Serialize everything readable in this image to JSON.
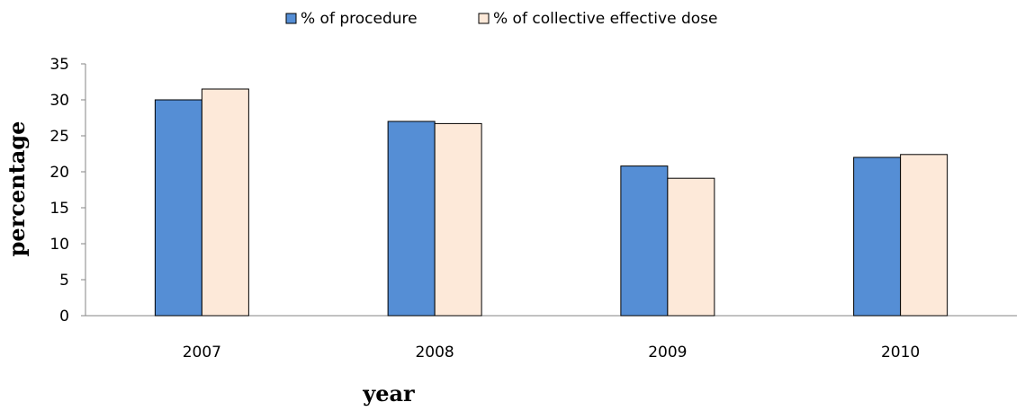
{
  "chart_data": {
    "type": "bar",
    "categories": [
      "2007",
      "2008",
      "2009",
      "2010"
    ],
    "series": [
      {
        "name": "% of procedure",
        "values": [
          30.0,
          27.0,
          20.8,
          22.0
        ],
        "color": "#558ed5"
      },
      {
        "name": "% of collective effective dose",
        "values": [
          31.5,
          26.7,
          19.1,
          22.4
        ],
        "color": "#fde9d9"
      }
    ],
    "xlabel": "year",
    "ylabel": "percentage",
    "ylim": [
      0,
      35
    ],
    "yticks": [
      0,
      5,
      10,
      15,
      20,
      25,
      30,
      35
    ],
    "grid": false,
    "legend_position": "top"
  }
}
